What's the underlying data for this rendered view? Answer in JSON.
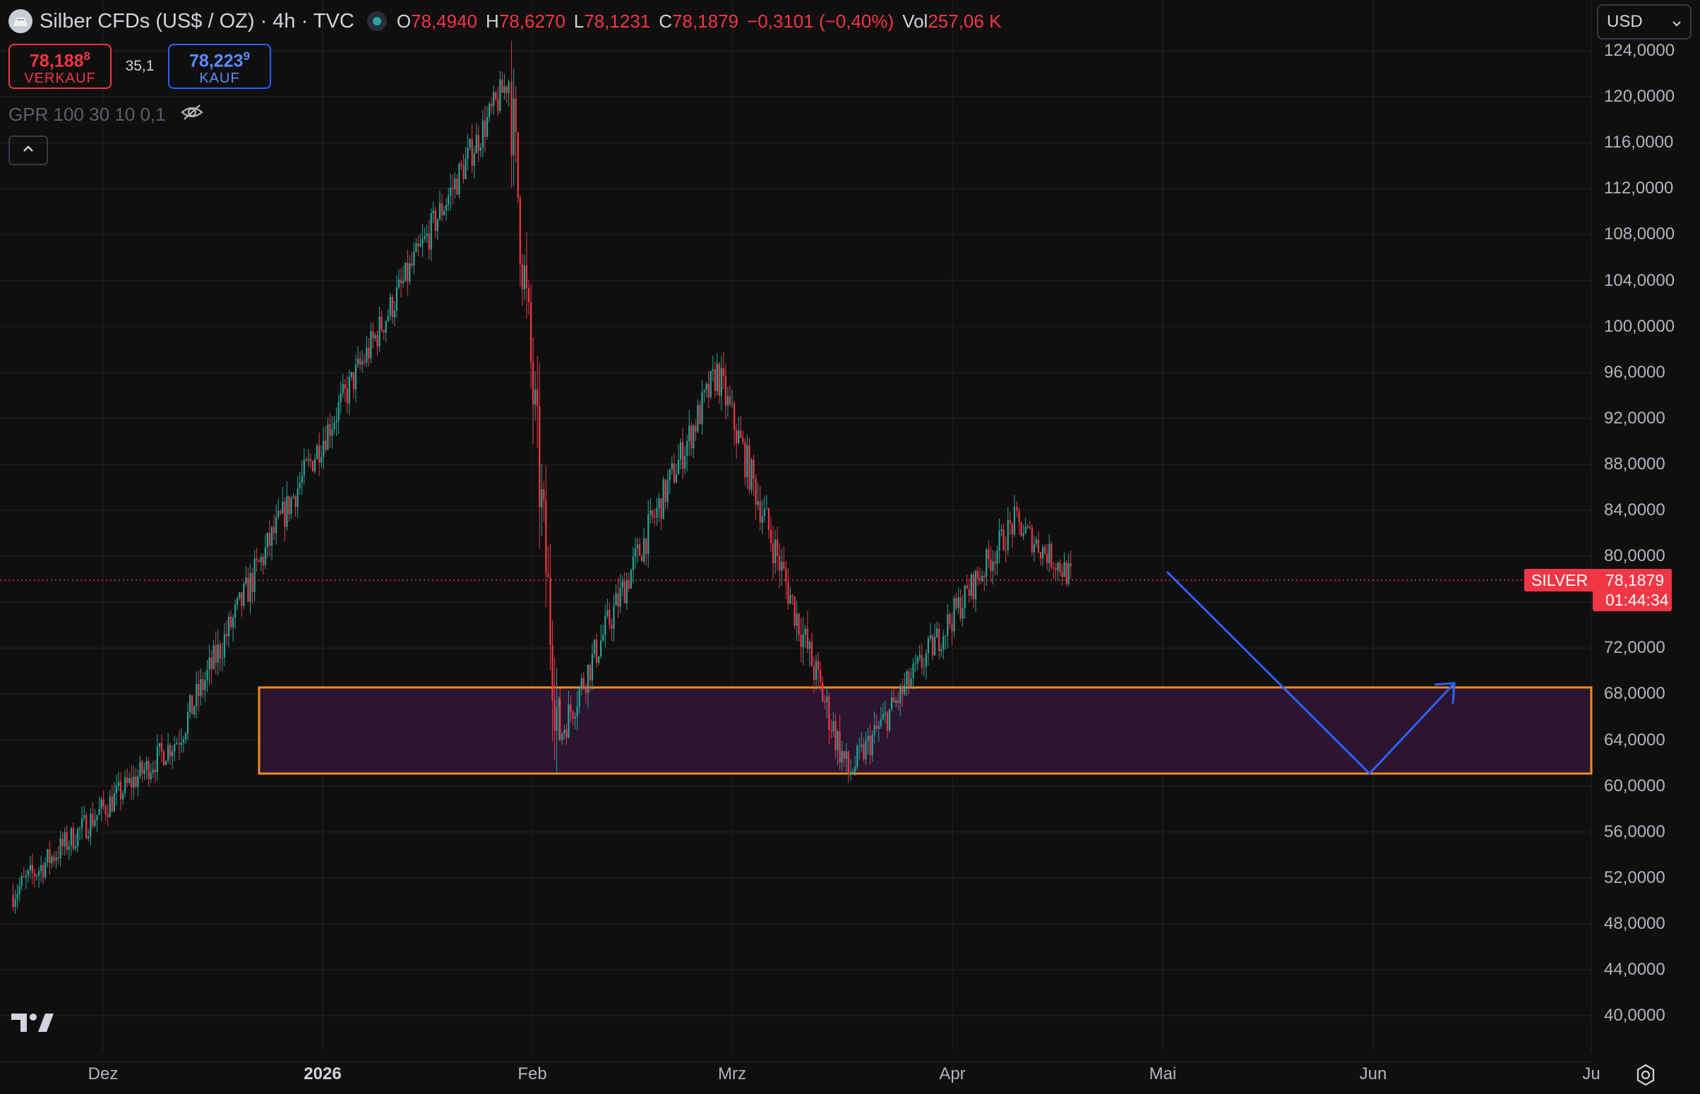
{
  "symbol": {
    "title": "Silber CFDs (US$ / OZ) · 4h · TVC",
    "ohlc": [
      {
        "k": "O",
        "v": "78,4940"
      },
      {
        "k": "H",
        "v": "78,6270"
      },
      {
        "k": "L",
        "v": "78,1231"
      },
      {
        "k": "C",
        "v": "78,1879"
      },
      {
        "k": "",
        "v": "−0,3101 (−0,40%)"
      },
      {
        "k": "Vol",
        "v": "257,06 K"
      }
    ]
  },
  "trade": {
    "sell_price": "78,188",
    "sell_price_sup": "8",
    "sell_label": "VERKAUF",
    "spread": "35,1",
    "buy_price": "78,223",
    "buy_price_sup": "9",
    "buy_label": "KAUF"
  },
  "indicator": {
    "label": "GPR 100 30 10 0,1",
    "icon": "eye-crossed-icon"
  },
  "currency": {
    "label": "USD",
    "icon": "chevron-down-icon"
  },
  "price_axis": {
    "ticks": [
      "124,0000",
      "120,0000",
      "116,0000",
      "112,0000",
      "108,0000",
      "104,0000",
      "100,0000",
      "96,0000",
      "92,0000",
      "88,0000",
      "84,0000",
      "80,0000",
      "72,0000",
      "68,0000",
      "64,0000",
      "60,0000",
      "56,0000",
      "52,0000",
      "48,0000",
      "44,0000",
      "40,0000"
    ]
  },
  "time_axis": {
    "ticks": [
      {
        "label": "Dez",
        "bold": false
      },
      {
        "label": "2026",
        "bold": true
      },
      {
        "label": "Feb",
        "bold": false
      },
      {
        "label": "Mrz",
        "bold": false
      },
      {
        "label": "Apr",
        "bold": false
      },
      {
        "label": "Mai",
        "bold": false
      },
      {
        "label": "Jun",
        "bold": false
      },
      {
        "label": "Ju",
        "bold": false
      }
    ]
  },
  "last_price": {
    "symbol": "SILVER",
    "price": "78,1879",
    "countdown": "01:44:34"
  },
  "colors": {
    "up": "#26a69a",
    "down": "#f23645",
    "zone_fill": "#2b1530",
    "zone_border": "#f5891f",
    "arrow": "#2e62ff",
    "grid": "#1c1c1c",
    "background": "#0f0f0f"
  },
  "chart_data": {
    "type": "candlestick",
    "interval": "4h",
    "y_range": [
      38,
      126
    ],
    "key_points": [
      {
        "date": "2025-11-18",
        "price": 50.5
      },
      {
        "date": "2025-12-12",
        "price": 64.0
      },
      {
        "date": "2025-12-26",
        "price": 82.0
      },
      {
        "date": "2026-01-29",
        "price": 121.5
      },
      {
        "date": "2026-02-05",
        "price": 64.0
      },
      {
        "date": "2026-02-28",
        "price": 96.0
      },
      {
        "date": "2026-03-19",
        "price": 61.0
      },
      {
        "date": "2026-04-12",
        "price": 83.0
      },
      {
        "date": "2026-04-20",
        "price": 78.19
      }
    ],
    "support_zone": {
      "low": 61.0,
      "high": 68.7
    },
    "projection": [
      {
        "date": "2026-05-01",
        "price": 80.5
      },
      {
        "date": "2026-05-31",
        "price": 61.0
      },
      {
        "date": "2026-06-09",
        "price": 69.5
      }
    ]
  }
}
